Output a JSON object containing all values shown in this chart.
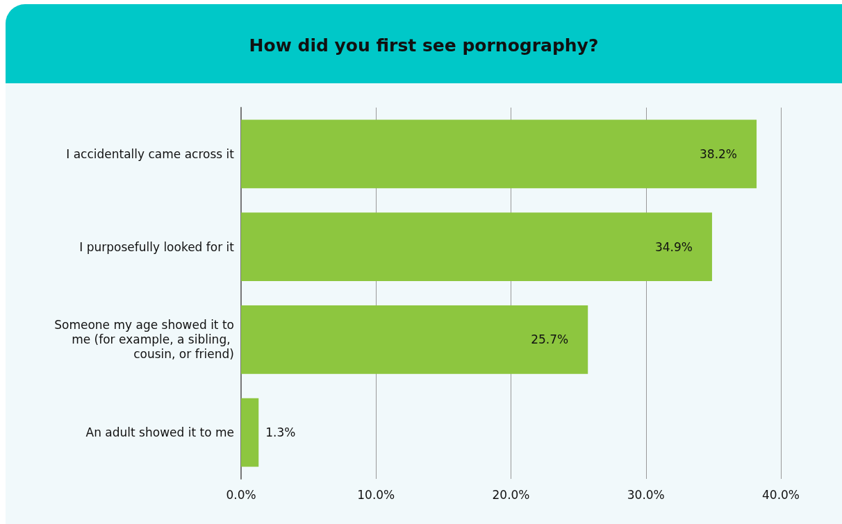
{
  "chart_data": {
    "type": "bar",
    "orientation": "horizontal",
    "title": "How did you first see pornography?",
    "categories": [
      "I accidentally came across it",
      "I purposefully looked for it",
      "Someone my age showed it to me (for example, a sibling, cousin, or friend)",
      "An adult showed it to me"
    ],
    "values": [
      38.2,
      34.9,
      25.7,
      1.3
    ],
    "value_labels": [
      "38.2%",
      "34.9%",
      "25.7%",
      "1.3%"
    ],
    "color": "#8dc63f",
    "xlim": [
      0,
      40
    ],
    "xticks": [
      {
        "value": 0,
        "label": "0.0%"
      },
      {
        "value": 10,
        "label": "10.0%"
      },
      {
        "value": 20,
        "label": "20.0%"
      },
      {
        "value": 30,
        "label": "30.0%"
      },
      {
        "value": 40,
        "label": "40.0%"
      }
    ],
    "grid": "x"
  }
}
